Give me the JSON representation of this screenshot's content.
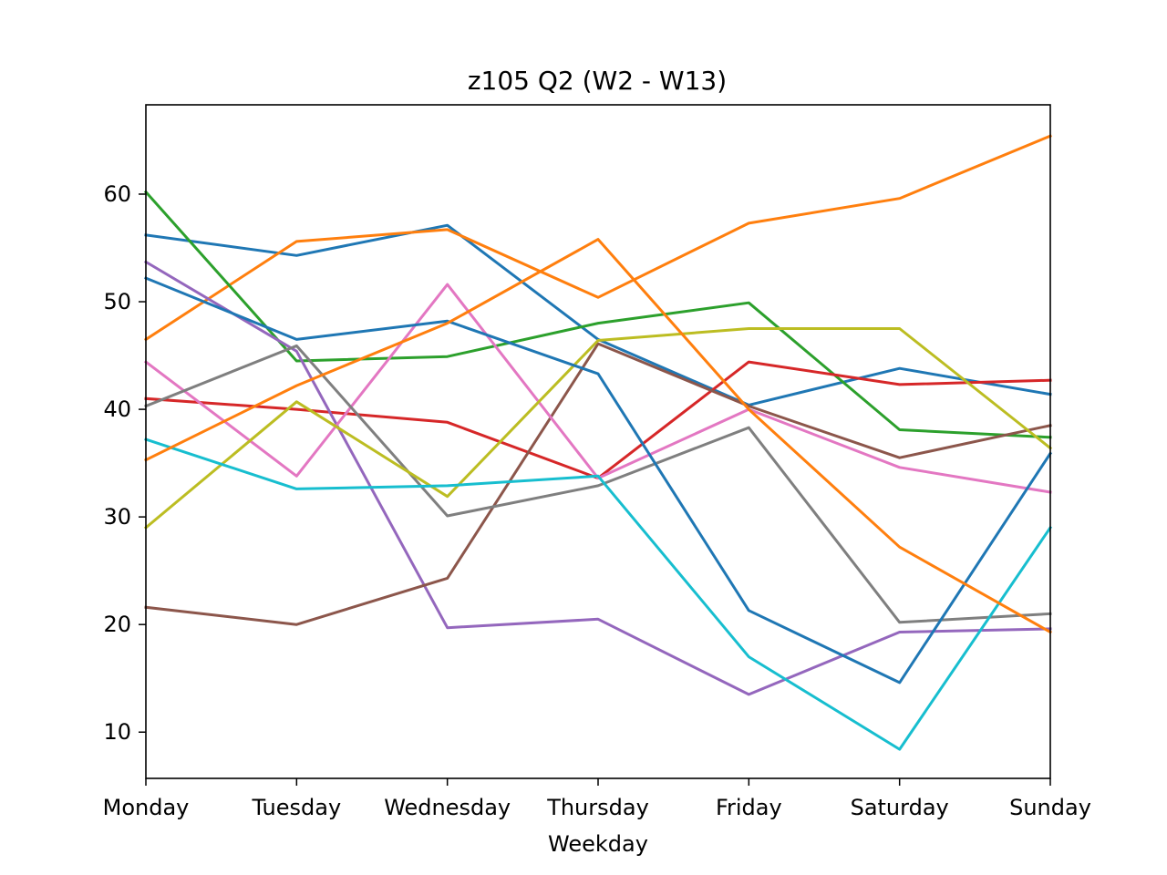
{
  "chart_data": {
    "type": "line",
    "title": "z105 Q2 (W2 - W13)",
    "xlabel": "Weekday",
    "ylabel": "",
    "categories": [
      "Monday",
      "Tuesday",
      "Wednesday",
      "Thursday",
      "Friday",
      "Saturday",
      "Sunday"
    ],
    "ylim": [
      5.7,
      68.3
    ],
    "yticks": [
      10,
      20,
      30,
      40,
      50,
      60
    ],
    "grid": false,
    "legend": "none",
    "series": [
      {
        "color": "#1f77b4",
        "values": [
          56.2,
          54.3,
          57.1,
          46.5,
          40.4,
          43.8,
          41.4
        ]
      },
      {
        "color": "#ff7f0e",
        "values": [
          46.5,
          55.6,
          56.7,
          50.4,
          57.3,
          59.6,
          65.4
        ]
      },
      {
        "color": "#2ca02c",
        "values": [
          60.2,
          44.5,
          44.9,
          48.0,
          49.9,
          38.1,
          37.4
        ]
      },
      {
        "color": "#d62728",
        "values": [
          41.0,
          40.0,
          38.8,
          33.6,
          44.4,
          42.3,
          42.7
        ]
      },
      {
        "color": "#9467bd",
        "values": [
          53.7,
          45.4,
          19.7,
          20.5,
          13.5,
          19.3,
          19.6
        ]
      },
      {
        "color": "#8c564b",
        "values": [
          21.6,
          20.0,
          24.3,
          46.1,
          40.3,
          35.5,
          38.5
        ]
      },
      {
        "color": "#e377c2",
        "values": [
          44.4,
          33.8,
          51.6,
          33.6,
          40.0,
          34.6,
          32.3
        ]
      },
      {
        "color": "#7f7f7f",
        "values": [
          40.3,
          45.9,
          30.1,
          32.9,
          38.3,
          20.2,
          21.0
        ]
      },
      {
        "color": "#bcbd22",
        "values": [
          29.0,
          40.7,
          31.9,
          46.4,
          47.5,
          47.5,
          36.4
        ]
      },
      {
        "color": "#17becf",
        "values": [
          37.2,
          32.6,
          32.9,
          33.8,
          17.0,
          8.4,
          29.0
        ]
      },
      {
        "color": "#1f77b4",
        "values": [
          52.2,
          46.5,
          48.2,
          43.3,
          21.3,
          14.6,
          35.9
        ]
      },
      {
        "color": "#ff7f0e",
        "values": [
          35.3,
          42.2,
          48.0,
          55.8,
          40.0,
          27.2,
          19.3
        ]
      }
    ]
  }
}
